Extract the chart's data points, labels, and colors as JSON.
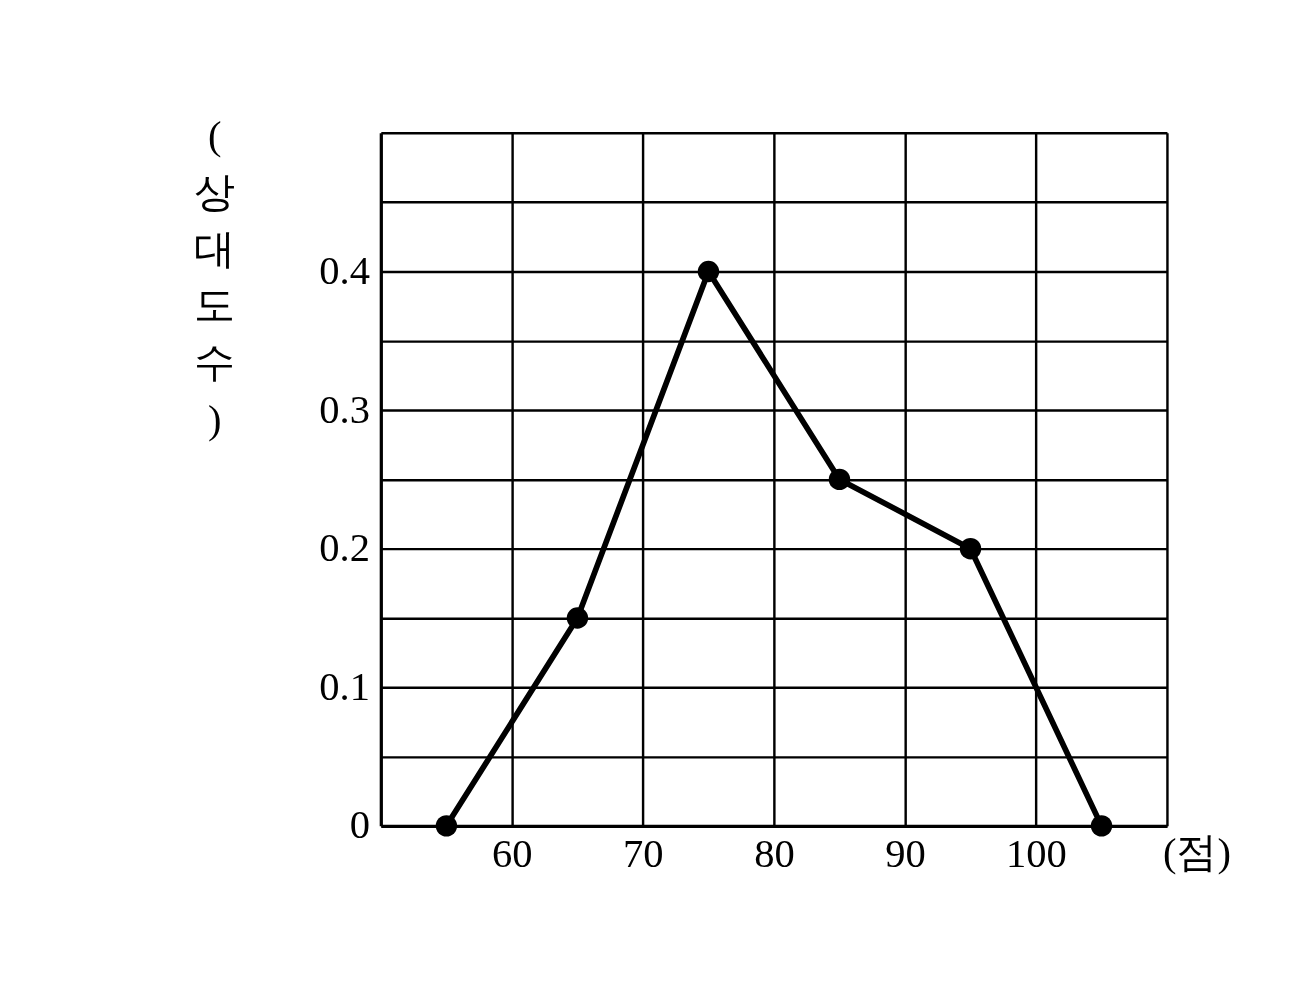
{
  "chart_data": {
    "type": "line",
    "xlabel": "(점)",
    "ylabel": "(상대도수)",
    "x": [
      55,
      65,
      75,
      85,
      95,
      105
    ],
    "series": [
      {
        "color": "#000000",
        "values": [
          0,
          0.15,
          0.4,
          0.25,
          0.2,
          0
        ]
      }
    ],
    "xlim": [
      50,
      110
    ],
    "xticks": [
      60,
      70,
      80,
      90,
      100,
      {
        "value": 110,
        "label": null
      }
    ],
    "ylim": [
      0,
      0.5
    ],
    "yticks": [
      0,
      {
        "value": 0.05,
        "label": null
      },
      0.1,
      {
        "value": 0.15,
        "label": null
      },
      0.2,
      {
        "value": 0.25,
        "label": null
      },
      0.3,
      {
        "value": 0.35,
        "label": null
      },
      0.4,
      {
        "value": 0.45,
        "label": null
      },
      {
        "value": 0.5,
        "label": null
      }
    ],
    "grid": true,
    "marker": "circle",
    "line_style": "solid"
  }
}
